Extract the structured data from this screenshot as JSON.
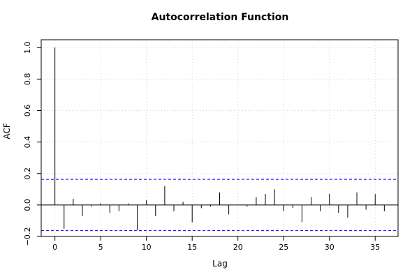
{
  "chart_data": {
    "type": "bar",
    "title": "Autocorrelation Function",
    "xlabel": "Lag",
    "ylabel": "ACF",
    "x": [
      0,
      1,
      2,
      3,
      4,
      5,
      6,
      7,
      8,
      9,
      10,
      11,
      12,
      13,
      14,
      15,
      16,
      17,
      18,
      19,
      20,
      21,
      22,
      23,
      24,
      25,
      26,
      27,
      28,
      29,
      30,
      31,
      32,
      33,
      34,
      35,
      36
    ],
    "values": [
      1.0,
      -0.15,
      0.04,
      -0.07,
      -0.01,
      0.01,
      -0.05,
      -0.04,
      0.01,
      -0.16,
      0.03,
      -0.07,
      0.12,
      -0.04,
      0.02,
      -0.11,
      -0.02,
      -0.01,
      0.08,
      -0.06,
      0.0,
      -0.01,
      0.05,
      0.07,
      0.1,
      -0.04,
      -0.02,
      -0.11,
      0.05,
      -0.04,
      0.07,
      -0.05,
      -0.08,
      0.08,
      -0.03,
      0.07,
      -0.04
    ],
    "conf_limit": 0.163,
    "xlim": [
      -1.5,
      37.5
    ],
    "ylim": [
      -0.2,
      1.05
    ],
    "xticks": [
      0,
      5,
      10,
      15,
      20,
      25,
      30,
      35
    ],
    "xtick_labels": [
      "0",
      "5",
      "10",
      "15",
      "20",
      "25",
      "30",
      "35"
    ],
    "yticks": [
      -0.2,
      0.0,
      0.2,
      0.4,
      0.6,
      0.8,
      1.0
    ],
    "ytick_labels": [
      "−0.2",
      "0.0",
      "0.2",
      "0.4",
      "0.6",
      "0.8",
      "1.0"
    ],
    "grid": true,
    "colors": {
      "bars": "#000000",
      "conf_lines": "#0000ff",
      "grid": "#d3d3d3",
      "zero_line": "#000000"
    }
  }
}
